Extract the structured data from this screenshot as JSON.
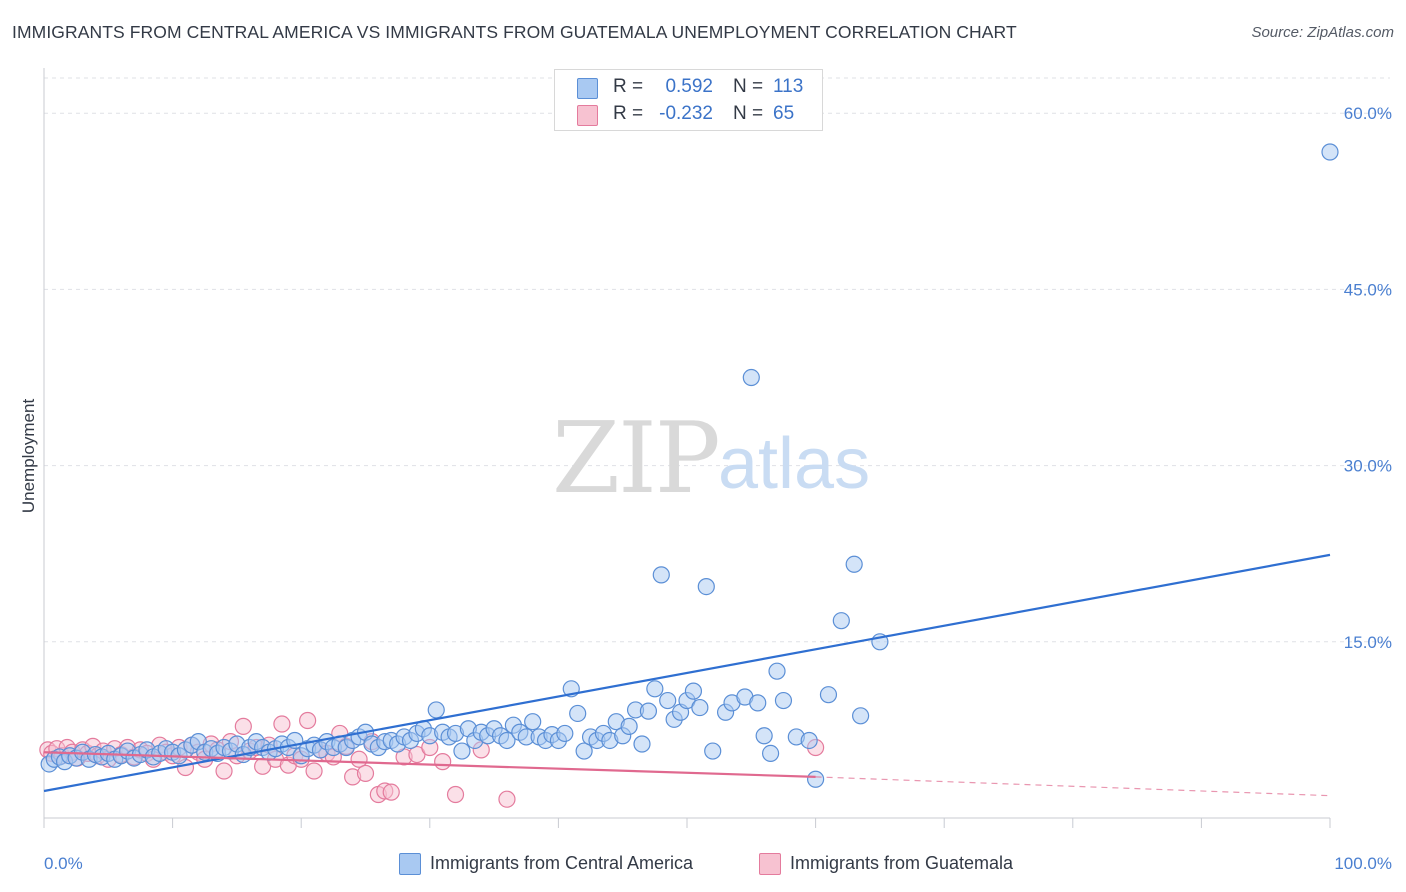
{
  "header": {
    "title": "IMMIGRANTS FROM CENTRAL AMERICA VS IMMIGRANTS FROM GUATEMALA UNEMPLOYMENT CORRELATION CHART",
    "source": "Source: ZipAtlas.com"
  },
  "watermark": {
    "zip": "ZIP",
    "atlas": "atlas"
  },
  "stats_legend": [
    {
      "r_label": "R =",
      "r_value": "0.592",
      "n_label": "N =",
      "n_value": "113",
      "color": "#a9c9f2",
      "border": "#5b8fd6"
    },
    {
      "r_label": "R =",
      "r_value": "-0.232",
      "n_label": "N =",
      "n_value": "65",
      "color": "#f7c2d1",
      "border": "#e47b9d"
    }
  ],
  "colors": {
    "blue_fill": "#a9c9f2",
    "blue_stroke": "#5b8fd6",
    "blue_line": "#2f6fd1",
    "pink_fill": "#f7c2d1",
    "pink_stroke": "#e47b9d",
    "pink_line": "#e0698f",
    "grid": "#dfe1e6",
    "tick_text": "#4a7fd0"
  },
  "chart_data": {
    "type": "scatter",
    "title": "IMMIGRANTS FROM CENTRAL AMERICA VS IMMIGRANTS FROM GUATEMALA UNEMPLOYMENT CORRELATION CHART",
    "xlabel": "",
    "ylabel": "Unemployment",
    "xlim": [
      0,
      100
    ],
    "ylim": [
      0,
      63
    ],
    "x_ticks": [
      "0.0%",
      "100.0%"
    ],
    "y_ticks": [
      {
        "value": 15,
        "label": "15.0%"
      },
      {
        "value": 30,
        "label": "30.0%"
      },
      {
        "value": 45,
        "label": "45.0%"
      },
      {
        "value": 60,
        "label": "60.0%"
      }
    ],
    "grid": true,
    "legend_position": "bottom",
    "series": [
      {
        "name": "Immigrants from Central America",
        "color": "#a9c9f2",
        "trend": {
          "x": [
            0,
            100
          ],
          "y": [
            2.3,
            22.4
          ],
          "style": "solid"
        },
        "points": [
          [
            0.4,
            4.6
          ],
          [
            0.8,
            5.0
          ],
          [
            1.2,
            5.2
          ],
          [
            1.6,
            4.8
          ],
          [
            2.0,
            5.3
          ],
          [
            2.5,
            5.1
          ],
          [
            3.0,
            5.6
          ],
          [
            3.5,
            5.0
          ],
          [
            4.0,
            5.4
          ],
          [
            4.5,
            5.2
          ],
          [
            5.0,
            5.5
          ],
          [
            5.5,
            5.0
          ],
          [
            6.0,
            5.3
          ],
          [
            6.5,
            5.7
          ],
          [
            7.0,
            5.1
          ],
          [
            7.5,
            5.4
          ],
          [
            8.0,
            5.8
          ],
          [
            8.5,
            5.2
          ],
          [
            9.0,
            5.5
          ],
          [
            9.5,
            5.9
          ],
          [
            10.0,
            5.6
          ],
          [
            10.5,
            5.3
          ],
          [
            11.0,
            5.8
          ],
          [
            11.5,
            6.2
          ],
          [
            12.0,
            6.5
          ],
          [
            12.5,
            5.6
          ],
          [
            13.0,
            5.9
          ],
          [
            13.5,
            5.5
          ],
          [
            14.0,
            6.0
          ],
          [
            14.5,
            5.7
          ],
          [
            15.0,
            6.3
          ],
          [
            15.5,
            5.4
          ],
          [
            16.0,
            6.0
          ],
          [
            16.5,
            6.5
          ],
          [
            17.0,
            6.0
          ],
          [
            17.5,
            5.6
          ],
          [
            18.0,
            5.9
          ],
          [
            18.5,
            6.3
          ],
          [
            19.0,
            6.0
          ],
          [
            19.5,
            6.6
          ],
          [
            20.0,
            5.3
          ],
          [
            20.5,
            5.9
          ],
          [
            21.0,
            6.2
          ],
          [
            21.5,
            5.8
          ],
          [
            22.0,
            6.5
          ],
          [
            22.5,
            6.0
          ],
          [
            23.0,
            6.3
          ],
          [
            23.5,
            6.0
          ],
          [
            24.0,
            6.6
          ],
          [
            24.5,
            6.9
          ],
          [
            25.0,
            7.3
          ],
          [
            25.5,
            6.3
          ],
          [
            26.0,
            6.0
          ],
          [
            26.5,
            6.5
          ],
          [
            27.0,
            6.6
          ],
          [
            27.5,
            6.3
          ],
          [
            28.0,
            6.9
          ],
          [
            28.5,
            6.6
          ],
          [
            29.0,
            7.2
          ],
          [
            29.5,
            7.6
          ],
          [
            30.0,
            7.0
          ],
          [
            30.5,
            9.2
          ],
          [
            31.0,
            7.3
          ],
          [
            31.5,
            6.9
          ],
          [
            32.0,
            7.2
          ],
          [
            32.5,
            5.7
          ],
          [
            33.0,
            7.6
          ],
          [
            33.5,
            6.6
          ],
          [
            34.0,
            7.3
          ],
          [
            34.5,
            7.0
          ],
          [
            35.0,
            7.6
          ],
          [
            35.5,
            7.0
          ],
          [
            36.0,
            6.6
          ],
          [
            36.5,
            7.9
          ],
          [
            37.0,
            7.3
          ],
          [
            37.5,
            6.9
          ],
          [
            38.0,
            8.2
          ],
          [
            38.5,
            6.9
          ],
          [
            39.0,
            6.6
          ],
          [
            39.5,
            7.1
          ],
          [
            40.0,
            6.6
          ],
          [
            40.5,
            7.2
          ],
          [
            41.0,
            11.0
          ],
          [
            41.5,
            8.9
          ],
          [
            42.0,
            5.7
          ],
          [
            42.5,
            6.9
          ],
          [
            43.0,
            6.6
          ],
          [
            43.5,
            7.2
          ],
          [
            44.0,
            6.6
          ],
          [
            44.5,
            8.2
          ],
          [
            45.0,
            7.0
          ],
          [
            45.5,
            7.8
          ],
          [
            46.0,
            9.2
          ],
          [
            46.5,
            6.3
          ],
          [
            47.0,
            9.1
          ],
          [
            47.5,
            11.0
          ],
          [
            48.0,
            20.7
          ],
          [
            48.5,
            10.0
          ],
          [
            49.0,
            8.4
          ],
          [
            49.5,
            9.0
          ],
          [
            50.0,
            10.0
          ],
          [
            50.5,
            10.8
          ],
          [
            51.0,
            9.4
          ],
          [
            51.5,
            19.7
          ],
          [
            52.0,
            5.7
          ],
          [
            53.0,
            9.0
          ],
          [
            53.5,
            9.8
          ],
          [
            54.5,
            10.3
          ],
          [
            55.0,
            37.5
          ],
          [
            55.5,
            9.8
          ],
          [
            56.0,
            7.0
          ],
          [
            56.5,
            5.5
          ],
          [
            57.0,
            12.5
          ],
          [
            57.5,
            10.0
          ],
          [
            58.5,
            6.9
          ],
          [
            59.5,
            6.6
          ],
          [
            60.0,
            3.3
          ],
          [
            61.0,
            10.5
          ],
          [
            62.0,
            16.8
          ],
          [
            63.0,
            21.6
          ],
          [
            63.5,
            8.7
          ],
          [
            65.0,
            15.0
          ],
          [
            100.0,
            56.7
          ]
        ]
      },
      {
        "name": "Immigrants from Guatemala",
        "color": "#f7c2d1",
        "trend": {
          "x": [
            0,
            60
          ],
          "y": [
            5.6,
            3.5
          ],
          "style": "solid",
          "extended_x": [
            60,
            100
          ],
          "extended_y": [
            3.5,
            1.9
          ],
          "extended_style": "dashed"
        },
        "points": [
          [
            0.3,
            5.8
          ],
          [
            0.6,
            5.5
          ],
          [
            1.0,
            5.9
          ],
          [
            1.4,
            5.3
          ],
          [
            1.8,
            6.0
          ],
          [
            2.2,
            5.6
          ],
          [
            2.6,
            5.1
          ],
          [
            3.0,
            5.8
          ],
          [
            3.4,
            5.5
          ],
          [
            3.8,
            6.1
          ],
          [
            4.2,
            5.3
          ],
          [
            4.6,
            5.7
          ],
          [
            5.0,
            5.0
          ],
          [
            5.5,
            5.9
          ],
          [
            6.0,
            5.4
          ],
          [
            6.5,
            6.0
          ],
          [
            7.0,
            5.2
          ],
          [
            7.5,
            5.8
          ],
          [
            8.0,
            5.5
          ],
          [
            8.5,
            5.0
          ],
          [
            9.0,
            6.2
          ],
          [
            9.5,
            5.6
          ],
          [
            10.0,
            5.3
          ],
          [
            10.5,
            6.0
          ],
          [
            11.0,
            4.3
          ],
          [
            11.5,
            6.2
          ],
          [
            12.0,
            5.6
          ],
          [
            12.5,
            5.0
          ],
          [
            13.0,
            6.3
          ],
          [
            13.5,
            5.8
          ],
          [
            14.0,
            4.0
          ],
          [
            14.5,
            6.5
          ],
          [
            15.0,
            5.3
          ],
          [
            15.5,
            7.8
          ],
          [
            16.0,
            5.7
          ],
          [
            16.5,
            6.0
          ],
          [
            17.0,
            4.4
          ],
          [
            17.5,
            6.2
          ],
          [
            18.0,
            5.0
          ],
          [
            18.5,
            8.0
          ],
          [
            19.0,
            4.5
          ],
          [
            19.5,
            5.3
          ],
          [
            20.0,
            5.0
          ],
          [
            20.5,
            8.3
          ],
          [
            21.0,
            4.0
          ],
          [
            21.5,
            5.8
          ],
          [
            22.0,
            5.5
          ],
          [
            22.5,
            5.2
          ],
          [
            23.0,
            7.2
          ],
          [
            23.5,
            6.1
          ],
          [
            24.0,
            3.5
          ],
          [
            24.5,
            5.0
          ],
          [
            25.0,
            3.8
          ],
          [
            25.5,
            6.5
          ],
          [
            26.0,
            2.0
          ],
          [
            26.5,
            2.3
          ],
          [
            27.0,
            2.2
          ],
          [
            28.0,
            5.2
          ],
          [
            29.0,
            5.4
          ],
          [
            30.0,
            6.0
          ],
          [
            31.0,
            4.8
          ],
          [
            32.0,
            2.0
          ],
          [
            34.0,
            5.8
          ],
          [
            36.0,
            1.6
          ],
          [
            60.0,
            6.0
          ]
        ]
      }
    ]
  },
  "bottom_legend": [
    {
      "label": "Immigrants from Central America",
      "color": "#a9c9f2",
      "border": "#5b8fd6"
    },
    {
      "label": "Immigrants from Guatemala",
      "color": "#f7c2d1",
      "border": "#e47b9d"
    }
  ]
}
